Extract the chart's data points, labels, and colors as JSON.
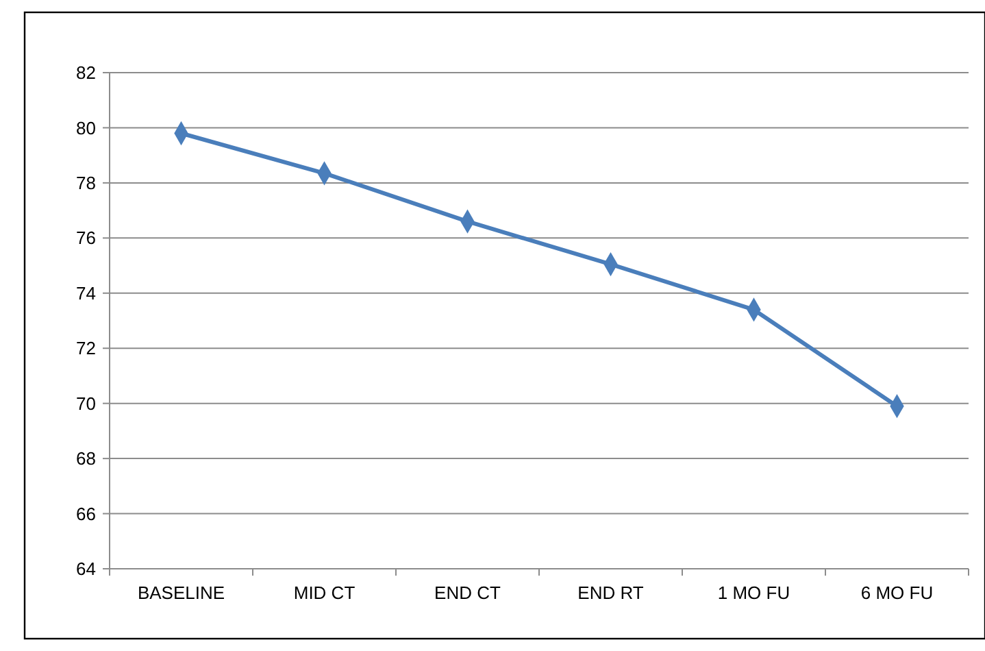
{
  "chart_data": {
    "type": "line",
    "categories": [
      "BASELINE",
      "MID CT",
      "END CT",
      "END RT",
      "1 MO FU",
      "6 MO FU"
    ],
    "series": [
      {
        "color": "#4a7ebb",
        "values": [
          79.8,
          78.35,
          76.6,
          75.05,
          73.4,
          69.9
        ]
      }
    ],
    "ylim": [
      64,
      82
    ],
    "yticks": [
      64,
      66,
      68,
      70,
      72,
      74,
      76,
      78,
      80,
      82
    ],
    "grid": "y",
    "marker": "diamond",
    "line_style": "solid"
  }
}
